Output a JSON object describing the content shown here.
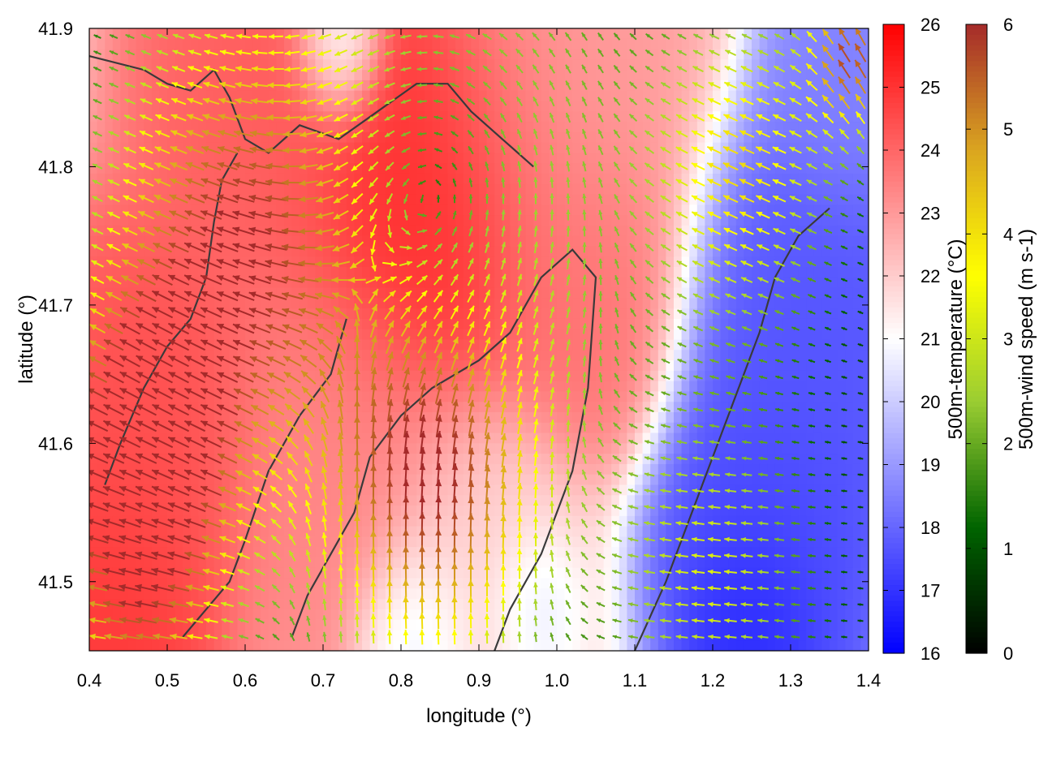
{
  "chart_data": {
    "type": "heatmap",
    "xlabel": "longitude (°)",
    "ylabel": "latitude (°)",
    "xlim": [
      0.4,
      1.4
    ],
    "ylim": [
      41.45,
      41.9
    ],
    "x_ticks": [
      "0.4",
      "0.5",
      "0.6",
      "0.7",
      "0.8",
      "0.9",
      "1.0",
      "1.1",
      "1.2",
      "1.3",
      "1.4"
    ],
    "y_ticks": [
      "41.5",
      "41.6",
      "41.7",
      "41.8",
      "41.9"
    ],
    "grid": false,
    "temperature": {
      "colorbar_label": "500m-temperature (°C)",
      "range": [
        16,
        26
      ],
      "ticks": [
        "16",
        "17",
        "18",
        "19",
        "20",
        "21",
        "22",
        "23",
        "24",
        "25",
        "26"
      ],
      "colormap": [
        "#0000ff",
        "#ffffff",
        "#ff0000"
      ],
      "centers": [
        {
          "lon": 0.84,
          "lat": 41.78,
          "value": 25.3,
          "spread": 0.09
        },
        {
          "lon": 0.62,
          "lat": 41.86,
          "value": 24.2,
          "spread": 0.08
        },
        {
          "lon": 0.47,
          "lat": 41.6,
          "value": 24.5,
          "spread": 0.08
        },
        {
          "lon": 0.43,
          "lat": 41.48,
          "value": 25.0,
          "spread": 0.06
        },
        {
          "lon": 1.03,
          "lat": 41.71,
          "value": 23.8,
          "spread": 0.06
        },
        {
          "lon": 0.72,
          "lat": 41.58,
          "value": 23.4,
          "spread": 0.08
        },
        {
          "lon": 1.0,
          "lat": 41.86,
          "value": 23.0,
          "spread": 0.09
        },
        {
          "lon": 1.33,
          "lat": 41.68,
          "value": 17.6,
          "spread": 0.08
        },
        {
          "lon": 1.27,
          "lat": 41.52,
          "value": 17.3,
          "spread": 0.07
        },
        {
          "lon": 1.25,
          "lat": 41.465,
          "value": 16.6,
          "spread": 0.04
        },
        {
          "lon": 1.37,
          "lat": 41.86,
          "value": 18.5,
          "spread": 0.05
        },
        {
          "lon": 0.9,
          "lat": 41.51,
          "value": 21.8,
          "spread": 0.07
        },
        {
          "lon": 0.82,
          "lat": 41.46,
          "value": 20.2,
          "spread": 0.04
        },
        {
          "lon": 0.97,
          "lat": 41.48,
          "value": 20.3,
          "spread": 0.03
        },
        {
          "lon": 0.72,
          "lat": 41.89,
          "value": 19.8,
          "spread": 0.03
        }
      ]
    },
    "wind": {
      "colorbar_label": "500m-wind speed (m s-1)",
      "range": [
        0,
        6
      ],
      "ticks": [
        "0",
        "1",
        "2",
        "3",
        "4",
        "5",
        "6"
      ],
      "colormap": [
        "#000000",
        "#006400",
        "#9acd32",
        "#ffff00",
        "#daa520",
        "#a52a2a"
      ],
      "vortices": [
        {
          "lon": 0.84,
          "lat": 41.78,
          "strength": 2.6,
          "radius": 0.15
        }
      ],
      "zones": [
        {
          "lon": 0.47,
          "lat": 41.6,
          "speed": 5.6,
          "u": -0.7,
          "v": 0.45,
          "spread": 0.07
        },
        {
          "lon": 0.57,
          "lat": 41.74,
          "speed": 4.3,
          "u": -0.6,
          "v": 0.3,
          "spread": 0.12
        },
        {
          "lon": 0.84,
          "lat": 41.56,
          "speed": 4.0,
          "u": -0.1,
          "v": 0.9,
          "spread": 0.1
        },
        {
          "lon": 0.46,
          "lat": 41.48,
          "speed": 3.6,
          "u": -0.9,
          "v": 0.1,
          "spread": 0.08
        },
        {
          "lon": 1.24,
          "lat": 41.8,
          "speed": 3.2,
          "u": -0.8,
          "v": 0.35,
          "spread": 0.08
        },
        {
          "lon": 1.2,
          "lat": 41.5,
          "speed": 2.4,
          "u": -0.9,
          "v": 0.1,
          "spread": 0.09
        },
        {
          "lon": 1.38,
          "lat": 41.88,
          "speed": 4.6,
          "u": -0.4,
          "v": 0.8,
          "spread": 0.04
        }
      ],
      "background_speed": 0.7
    },
    "coastline": [
      [
        [
          0.4,
          41.88
        ],
        [
          0.47,
          41.87
        ],
        [
          0.5,
          41.86
        ],
        [
          0.53,
          41.855
        ],
        [
          0.56,
          41.87
        ],
        [
          0.58,
          41.85
        ],
        [
          0.6,
          41.82
        ],
        [
          0.63,
          41.81
        ],
        [
          0.67,
          41.83
        ],
        [
          0.72,
          41.82
        ],
        [
          0.77,
          41.84
        ],
        [
          0.82,
          41.86
        ],
        [
          0.86,
          41.86
        ],
        [
          0.89,
          41.84
        ],
        [
          0.93,
          41.82
        ],
        [
          0.97,
          41.8
        ]
      ],
      [
        [
          0.66,
          41.46
        ],
        [
          0.68,
          41.49
        ],
        [
          0.71,
          41.52
        ],
        [
          0.74,
          41.55
        ],
        [
          0.76,
          41.59
        ],
        [
          0.8,
          41.62
        ],
        [
          0.84,
          41.64
        ],
        [
          0.9,
          41.66
        ],
        [
          0.94,
          41.68
        ],
        [
          0.98,
          41.72
        ],
        [
          1.02,
          41.74
        ],
        [
          1.05,
          41.72
        ],
        [
          1.04,
          41.64
        ],
        [
          1.02,
          41.58
        ],
        [
          0.98,
          41.52
        ],
        [
          0.94,
          41.48
        ],
        [
          0.92,
          41.45
        ]
      ],
      [
        [
          1.1,
          41.45
        ],
        [
          1.14,
          41.5
        ],
        [
          1.18,
          41.56
        ],
        [
          1.22,
          41.62
        ],
        [
          1.26,
          41.68
        ],
        [
          1.28,
          41.72
        ],
        [
          1.31,
          41.75
        ],
        [
          1.35,
          41.77
        ]
      ],
      [
        [
          0.42,
          41.57
        ],
        [
          0.44,
          41.6
        ],
        [
          0.47,
          41.64
        ],
        [
          0.5,
          41.67
        ],
        [
          0.53,
          41.69
        ],
        [
          0.55,
          41.72
        ],
        [
          0.56,
          41.76
        ],
        [
          0.57,
          41.79
        ],
        [
          0.59,
          41.81
        ]
      ],
      [
        [
          0.52,
          41.46
        ],
        [
          0.55,
          41.48
        ],
        [
          0.58,
          41.5
        ],
        [
          0.6,
          41.53
        ],
        [
          0.63,
          41.58
        ],
        [
          0.67,
          41.62
        ],
        [
          0.71,
          41.65
        ],
        [
          0.73,
          41.69
        ]
      ]
    ]
  }
}
